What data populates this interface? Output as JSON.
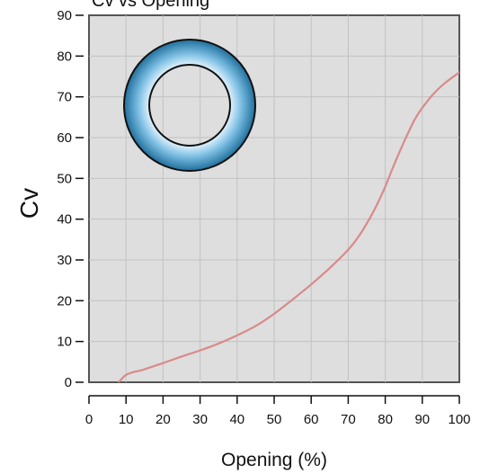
{
  "chart_data": {
    "type": "line",
    "title": "Cv vs Opening",
    "xlabel": "Opening (%)",
    "ylabel": "Cv",
    "xlim": [
      0,
      100
    ],
    "ylim": [
      0,
      90
    ],
    "x_ticks": [
      0,
      10,
      20,
      30,
      40,
      50,
      60,
      70,
      80,
      90,
      100
    ],
    "y_ticks": [
      0,
      10,
      20,
      30,
      40,
      50,
      60,
      70,
      80,
      90
    ],
    "grid": true,
    "series": [
      {
        "color": "#d98a8a",
        "x": [
          8,
          9,
          10,
          11,
          12,
          14,
          16,
          18,
          20,
          25,
          30,
          35,
          40,
          45,
          50,
          55,
          60,
          65,
          70,
          73,
          76,
          78,
          80,
          82,
          84,
          86,
          88,
          90,
          93,
          96,
          100
        ],
        "y": [
          0,
          1,
          1.8,
          2.2,
          2.5,
          2.9,
          3.5,
          4.1,
          4.7,
          6.3,
          7.8,
          9.5,
          11.5,
          13.8,
          16.8,
          20.3,
          24,
          28,
          32.5,
          36,
          40.5,
          44,
          48,
          52.5,
          56.8,
          60.8,
          64.5,
          67.3,
          70.7,
          73.3,
          76
        ]
      }
    ],
    "inset_icon": "valve-ring-icon",
    "colors": {
      "plot_background": "#dedede",
      "grid": "#c2c2c2",
      "frame": "#555555",
      "ring_dark": "#1f6f9c",
      "ring_light": "#dff1fb"
    }
  }
}
